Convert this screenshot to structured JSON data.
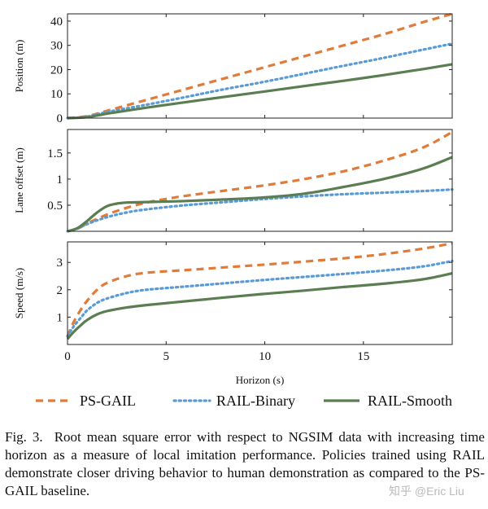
{
  "chart_data": [
    {
      "type": "line",
      "ylabel": "Position (m)",
      "xlim": [
        0,
        19.5
      ],
      "ylim": [
        0,
        43
      ],
      "yticks": [
        0,
        10,
        20,
        30,
        40
      ],
      "ytick_labels": [
        "0",
        "10",
        "20",
        "30",
        "40"
      ],
      "grid": false,
      "series": [
        {
          "name": "PS-GAIL",
          "x": [
            0,
            1,
            2,
            4,
            6,
            8,
            10,
            12,
            14,
            16,
            18,
            19.5
          ],
          "y": [
            0,
            0.8,
            3,
            7.5,
            12,
            16.5,
            21,
            25.5,
            30,
            34.5,
            39.5,
            43
          ]
        },
        {
          "name": "RAIL-Binary",
          "x": [
            0,
            1,
            2,
            4,
            6,
            8,
            10,
            12,
            14,
            16,
            18,
            19.5
          ],
          "y": [
            0,
            0.6,
            2.5,
            5.5,
            8.7,
            12,
            15,
            18.3,
            21.6,
            24.8,
            28.2,
            30.7
          ]
        },
        {
          "name": "RAIL-Smooth",
          "x": [
            0,
            1,
            2,
            4,
            6,
            8,
            10,
            12,
            14,
            16,
            18,
            19.5
          ],
          "y": [
            0,
            0.4,
            1.8,
            4.3,
            6.6,
            8.8,
            11,
            13.2,
            15.4,
            17.7,
            20.2,
            22.2
          ]
        }
      ]
    },
    {
      "type": "line",
      "ylabel": "Lane offset (m)",
      "xlim": [
        0,
        19.5
      ],
      "ylim": [
        0,
        1.95
      ],
      "yticks": [
        0.5,
        1,
        1.5
      ],
      "ytick_labels": [
        "0.5",
        "1",
        "1.5"
      ],
      "grid": false,
      "series": [
        {
          "name": "PS-GAIL",
          "x": [
            0,
            0.5,
            1,
            2,
            3,
            4,
            5,
            6,
            8,
            10,
            12,
            14,
            16,
            18,
            19.5
          ],
          "y": [
            0,
            0.05,
            0.15,
            0.32,
            0.45,
            0.55,
            0.62,
            0.68,
            0.78,
            0.88,
            1.0,
            1.15,
            1.35,
            1.6,
            1.9
          ]
        },
        {
          "name": "RAIL-Binary",
          "x": [
            0,
            0.5,
            1,
            2,
            3,
            4,
            6,
            8,
            10,
            12,
            14,
            16,
            18,
            19.5
          ],
          "y": [
            0,
            0.05,
            0.14,
            0.27,
            0.36,
            0.42,
            0.5,
            0.56,
            0.62,
            0.67,
            0.71,
            0.74,
            0.77,
            0.8
          ]
        },
        {
          "name": "RAIL-Smooth",
          "x": [
            0,
            0.5,
            1,
            1.5,
            2,
            2.5,
            3,
            4,
            6,
            8,
            10,
            12,
            14,
            16,
            18,
            19.5
          ],
          "y": [
            0,
            0.06,
            0.2,
            0.36,
            0.48,
            0.53,
            0.55,
            0.56,
            0.58,
            0.61,
            0.65,
            0.72,
            0.85,
            1.0,
            1.2,
            1.42
          ]
        }
      ]
    },
    {
      "type": "line",
      "ylabel": "Speed (m/s)",
      "xlabel": "Horizon (s)",
      "xlim": [
        0,
        19.5
      ],
      "ylim": [
        0,
        3.75
      ],
      "yticks": [
        1,
        2,
        3
      ],
      "ytick_labels": [
        "1",
        "2",
        "3"
      ],
      "xticks": [
        0,
        5,
        10,
        15
      ],
      "xtick_labels": [
        "0",
        "5",
        "10",
        "15"
      ],
      "grid": false,
      "series": [
        {
          "name": "PS-GAIL",
          "x": [
            0,
            0.3,
            0.7,
            1,
            1.5,
            2,
            3,
            4,
            6,
            8,
            10,
            12,
            14,
            16,
            18,
            19.5
          ],
          "y": [
            0.3,
            0.8,
            1.3,
            1.6,
            2.0,
            2.25,
            2.5,
            2.62,
            2.72,
            2.82,
            2.92,
            3.03,
            3.15,
            3.3,
            3.5,
            3.7
          ]
        },
        {
          "name": "RAIL-Binary",
          "x": [
            0,
            0.3,
            0.7,
            1,
            1.5,
            2,
            3,
            4,
            6,
            8,
            10,
            12,
            14,
            16,
            18,
            19.5
          ],
          "y": [
            0.3,
            0.65,
            1.0,
            1.25,
            1.52,
            1.68,
            1.88,
            2.0,
            2.12,
            2.24,
            2.36,
            2.47,
            2.58,
            2.7,
            2.85,
            3.05
          ]
        },
        {
          "name": "RAIL-Smooth",
          "x": [
            0,
            0.3,
            0.7,
            1,
            1.5,
            2,
            3,
            4,
            6,
            8,
            10,
            12,
            14,
            16,
            18,
            19.5
          ],
          "y": [
            0.2,
            0.45,
            0.72,
            0.9,
            1.1,
            1.22,
            1.35,
            1.44,
            1.58,
            1.72,
            1.85,
            1.97,
            2.1,
            2.22,
            2.38,
            2.6
          ]
        }
      ]
    }
  ],
  "legend": {
    "placement": "bottom",
    "entries": [
      {
        "label": "PS-GAIL",
        "color": "#e07b39",
        "style": "dashed"
      },
      {
        "label": "RAIL-Binary",
        "color": "#5b9bd5",
        "style": "dotted"
      },
      {
        "label": "RAIL-Smooth",
        "color": "#5a7d52",
        "style": "solid"
      }
    ]
  },
  "caption": {
    "label": "Fig. 3.",
    "text": "Root mean square error with respect to NGSIM data with increasing time horizon as a measure of local imitation performance. Policies trained using RAIL demonstrate closer driving behavior to human demonstration as compared to the PS-GAIL baseline."
  },
  "watermark": "知乎 @Eric Liu"
}
